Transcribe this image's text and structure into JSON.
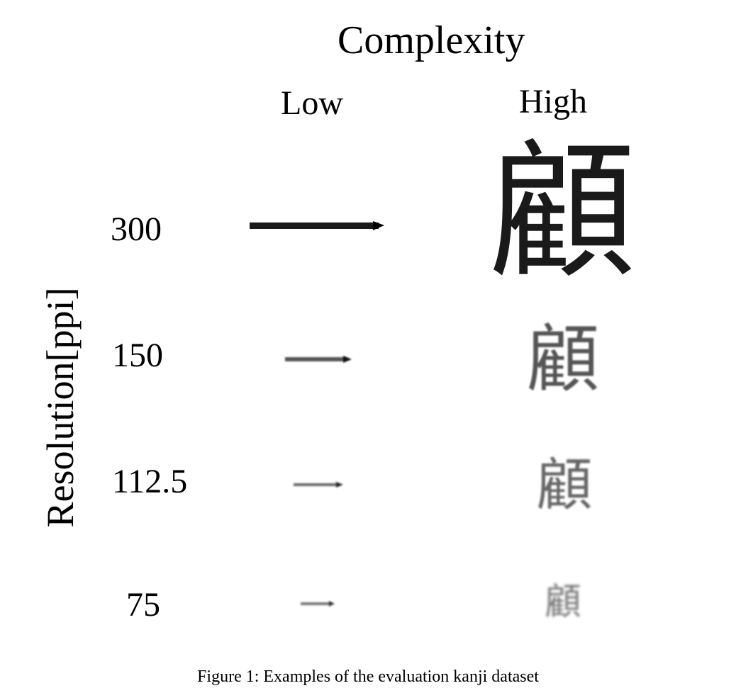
{
  "figure": {
    "column_header": "Complexity",
    "columns": [
      {
        "label": "Low",
        "glyph": "一"
      },
      {
        "label": "High",
        "glyph": "顧"
      }
    ],
    "row_axis_label": "Resolution[ppi]",
    "rows": [
      {
        "label": "300",
        "resolution_ppi": 300
      },
      {
        "label": "150",
        "resolution_ppi": 150
      },
      {
        "label": "112.5",
        "resolution_ppi": 112.5
      },
      {
        "label": "75",
        "resolution_ppi": 75
      }
    ],
    "caption": "Figure 1: Examples of the evaluation kanji dataset"
  }
}
